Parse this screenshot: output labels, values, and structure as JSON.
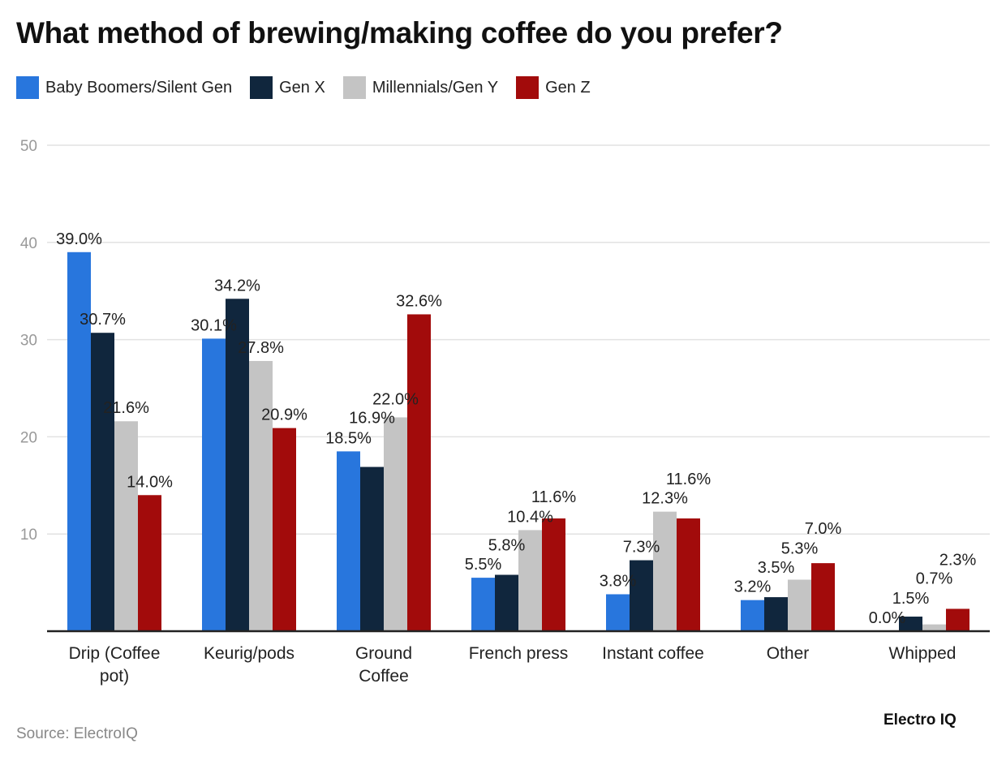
{
  "chart_data": {
    "type": "bar",
    "title": "What method of brewing/making coffee do you prefer?",
    "categories": [
      [
        "Drip (Coffee",
        "pot)"
      ],
      [
        "Keurig/pods"
      ],
      [
        "Ground",
        "Coffee"
      ],
      [
        "French press"
      ],
      [
        "Instant coffee"
      ],
      [
        "Other"
      ],
      [
        "Whipped"
      ]
    ],
    "series": [
      {
        "name": "Baby Boomers/Silent Gen",
        "color": "#2876dd",
        "values": [
          39.0,
          30.1,
          18.5,
          5.5,
          3.8,
          3.2,
          0.0
        ]
      },
      {
        "name": "Gen X",
        "color": "#10263d",
        "values": [
          30.7,
          34.2,
          16.9,
          5.8,
          7.3,
          3.5,
          1.5
        ]
      },
      {
        "name": "Millennials/Gen Y",
        "color": "#c4c4c4",
        "values": [
          21.6,
          27.8,
          22.0,
          10.4,
          12.3,
          5.3,
          0.7
        ]
      },
      {
        "name": "Gen Z",
        "color": "#a20b0b",
        "values": [
          14.0,
          20.9,
          32.6,
          11.6,
          11.6,
          7.0,
          2.3
        ]
      }
    ],
    "ylim": [
      0,
      50
    ],
    "yticks": [
      10,
      20,
      30,
      40,
      50
    ],
    "grid": true,
    "legend": "top-left",
    "label_suffix": "%"
  },
  "footer": {
    "source": "Source: ElectroIQ",
    "logo": "Electro IQ"
  }
}
